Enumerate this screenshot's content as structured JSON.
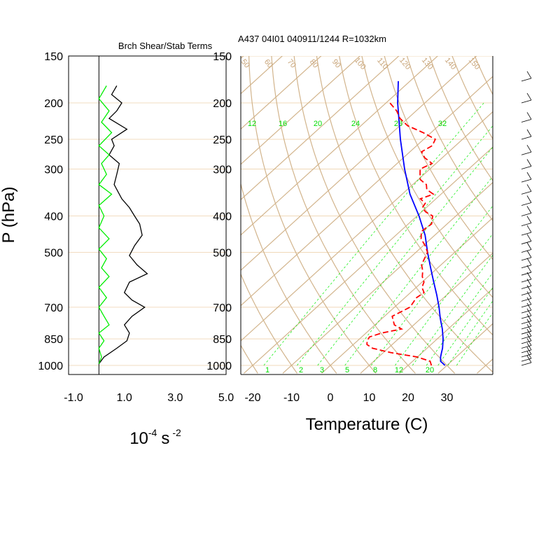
{
  "left_panel": {
    "title": "Brch Shear/Stab Terms",
    "xlabel_base": "10",
    "xlabel_exp": "-4",
    "xlabel_unit": "s",
    "xlabel_unit_exp": "-2",
    "ylabel": "P (hPa)"
  },
  "right_panel": {
    "title": "A437 04I01 040911/1244 R=1032km",
    "xlabel": "Temperature (C)"
  },
  "colors": {
    "temperature": "#0000ff",
    "dewpoint": "#ff0000",
    "shear": "#000000",
    "stability": "#00ee00",
    "isotherm": "#d2b48c",
    "mixing_ratio": "#00ee00"
  },
  "chart_data": [
    {
      "type": "line",
      "title": "Brch Shear/Stab Terms",
      "y_scale": "log",
      "ylim": [
        1000,
        150
      ],
      "xlim": [
        -1.0,
        5.0
      ],
      "y_ticks": [
        150,
        200,
        250,
        300,
        400,
        500,
        700,
        850,
        1000
      ],
      "x_ticks": [
        "-1.0",
        "1.0",
        "3.0",
        "5.0"
      ],
      "x_tick_values": [
        -1.0,
        1.0,
        3.0,
        5.0
      ],
      "grid": "horizontal at pressure ticks",
      "series": [
        {
          "color": "#000000",
          "p": [
            180,
            190,
            200,
            210,
            220,
            235,
            250,
            260,
            275,
            290,
            310,
            330,
            360,
            380,
            400,
            420,
            450,
            480,
            510,
            540,
            570,
            600,
            640,
            670,
            700,
            740,
            780,
            820,
            860,
            900,
            950,
            990
          ],
          "x": [
            0.7,
            0.5,
            0.9,
            0.7,
            0.4,
            1.1,
            0.5,
            0.6,
            0.4,
            0.8,
            0.7,
            0.6,
            0.9,
            1.2,
            1.4,
            1.6,
            1.7,
            1.4,
            1.2,
            1.5,
            1.9,
            1.2,
            1.0,
            1.3,
            1.8,
            1.3,
            1.0,
            1.2,
            1.1,
            0.7,
            0.2,
            0.0
          ]
        },
        {
          "color": "#00ee00",
          "p": [
            180,
            195,
            210,
            225,
            240,
            260,
            275,
            290,
            310,
            330,
            350,
            375,
            400,
            430,
            460,
            490,
            520,
            550,
            580,
            620,
            660,
            700,
            740,
            780,
            820,
            860,
            900,
            950,
            990
          ],
          "x": [
            0.3,
            0.0,
            0.4,
            0.1,
            0.5,
            0.0,
            0.4,
            0.1,
            0.3,
            0.0,
            0.5,
            0.0,
            0.2,
            0.0,
            0.4,
            0.0,
            0.3,
            0.1,
            0.4,
            0.0,
            0.3,
            0.0,
            0.2,
            0.4,
            0.0,
            0.2,
            0.0,
            0.1,
            0.0
          ]
        }
      ]
    },
    {
      "type": "line",
      "title": "A437 04I01 040911/1244 R=1032km",
      "xlabel": "Temperature (C)",
      "y_scale": "log",
      "ylim": [
        1000,
        150
      ],
      "x_ticks": [
        -20,
        -10,
        0,
        10,
        20,
        30
      ],
      "grid": "skew-T isotherms, dry adiabats, mixing ratio lines",
      "y_ticks": [
        150,
        200,
        250,
        300,
        400,
        500,
        700,
        850,
        1000
      ],
      "isotherm_labels": [
        "50",
        "60",
        "70",
        "80",
        "90",
        "100",
        "110",
        "120",
        "130",
        "140",
        "150"
      ],
      "mixing_ratio_labels_top": [
        "12",
        "16",
        "20",
        "24",
        "28",
        "32"
      ],
      "mixing_ratio_labels_bottom": [
        "1",
        "2",
        "3",
        "5",
        "8",
        "12",
        "20"
      ],
      "series": [
        {
          "color": "#0000ff",
          "p": [
            1000,
            975,
            950,
            925,
            900,
            850,
            800,
            750,
            700,
            650,
            600,
            550,
            500,
            450,
            400,
            350,
            300,
            250,
            200,
            175
          ],
          "t": [
            29.5,
            27.2,
            26.0,
            25.0,
            24.0,
            21.5,
            18.5,
            15.0,
            11.5,
            7.5,
            3.0,
            -1.8,
            -7.0,
            -12.5,
            -19.5,
            -28.0,
            -36.5,
            -46.0,
            -57.0,
            -63.0
          ]
        },
        {
          "color": "#ff0000",
          "dash": true,
          "p": [
            1000,
            975,
            950,
            925,
            900,
            880,
            860,
            840,
            820,
            800,
            780,
            760,
            740,
            720,
            700,
            680,
            660,
            640,
            620,
            600,
            580,
            560,
            540,
            520,
            500,
            480,
            460,
            440,
            420,
            400,
            390,
            380,
            370,
            360,
            350,
            340,
            330,
            320,
            310,
            300,
            290,
            280,
            270,
            260,
            250,
            240,
            230,
            220,
            210,
            200
          ],
          "t": [
            26.0,
            24.5,
            20.0,
            12.0,
            6.0,
            3.5,
            2.5,
            2.0,
            4.0,
            8.0,
            5.0,
            3.5,
            2.0,
            3.0,
            4.0,
            3.5,
            3.0,
            3.5,
            1.5,
            0.5,
            -1.5,
            -3.0,
            -5.0,
            -6.0,
            -7.0,
            -9.5,
            -12.5,
            -14.5,
            -14.0,
            -16.0,
            -19.0,
            -21.0,
            -21.5,
            -24.0,
            -22.0,
            -25.0,
            -26.5,
            -29.5,
            -31.0,
            -32.5,
            -31.0,
            -34.5,
            -37.0,
            -36.0,
            -37.0,
            -42.0,
            -48.0,
            -52.0,
            -55.0,
            -59.0
          ]
        }
      ]
    }
  ]
}
